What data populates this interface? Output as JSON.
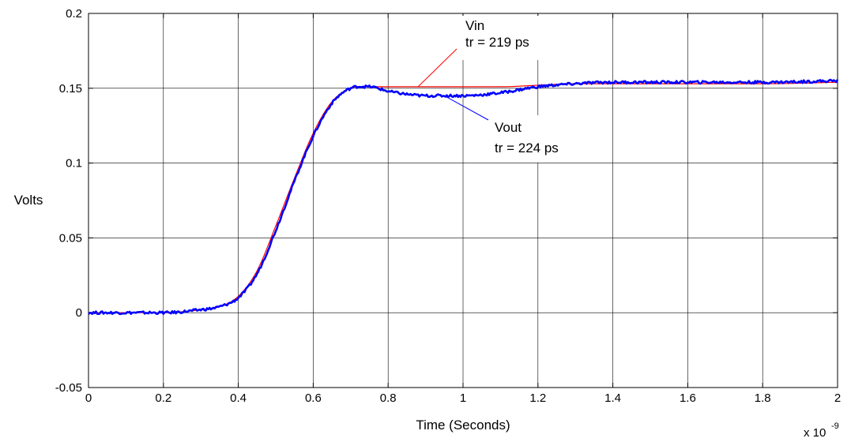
{
  "chart_data": {
    "type": "line",
    "title": "",
    "xlabel": "Time (Seconds)",
    "ylabel": "Volts",
    "x_scale_label": "x 10",
    "x_scale_exponent": "-9",
    "xlim": [
      0,
      2
    ],
    "ylim": [
      -0.05,
      0.2
    ],
    "x_ticks": [
      0,
      0.2,
      0.4,
      0.6,
      0.8,
      1,
      1.2,
      1.4,
      1.6,
      1.8,
      2
    ],
    "x_tick_labels": [
      "0",
      "0.2",
      "0.4",
      "0.6",
      "0.8",
      "1",
      "1.2",
      "1.4",
      "1.6",
      "1.8",
      "2"
    ],
    "y_ticks": [
      -0.05,
      0,
      0.05,
      0.1,
      0.15,
      0.2
    ],
    "y_tick_labels": [
      "-0.05",
      "0",
      "0.05",
      "0.1",
      "0.15",
      "0.2"
    ],
    "grid": true,
    "legend": "none",
    "series": [
      {
        "name": "Vin",
        "color": "#ff0000",
        "x": [
          0,
          0.2,
          0.3,
          0.35,
          0.4,
          0.45,
          0.5,
          0.55,
          0.6,
          0.65,
          0.7,
          0.75,
          0.8,
          0.9,
          1.0,
          1.1,
          1.2,
          1.3,
          1.4,
          1.6,
          1.8,
          2.0
        ],
        "values": [
          0,
          0,
          0.002,
          0.004,
          0.011,
          0.028,
          0.058,
          0.09,
          0.12,
          0.141,
          0.15,
          0.151,
          0.151,
          0.151,
          0.151,
          0.151,
          0.152,
          0.153,
          0.153,
          0.153,
          0.153,
          0.154
        ]
      },
      {
        "name": "Vout",
        "color": "#0000ff",
        "x": [
          0,
          0.2,
          0.3,
          0.35,
          0.4,
          0.45,
          0.5,
          0.55,
          0.6,
          0.65,
          0.7,
          0.75,
          0.8,
          0.85,
          0.9,
          1.0,
          1.1,
          1.2,
          1.3,
          1.4,
          1.6,
          1.8,
          2.0
        ],
        "values": [
          0,
          0,
          0.002,
          0.004,
          0.01,
          0.026,
          0.055,
          0.088,
          0.118,
          0.14,
          0.15,
          0.151,
          0.148,
          0.146,
          0.145,
          0.145,
          0.147,
          0.151,
          0.153,
          0.154,
          0.154,
          0.154,
          0.155
        ]
      }
    ],
    "annotations": [
      {
        "series": "Vin",
        "lines": [
          "Vin",
          "tr = 219 ps"
        ],
        "target_x": 0.88,
        "target_y": 0.151
      },
      {
        "series": "Vout",
        "lines": [
          "Vout",
          "tr = 224 ps"
        ],
        "target_x": 0.95,
        "target_y": 0.145
      }
    ]
  }
}
